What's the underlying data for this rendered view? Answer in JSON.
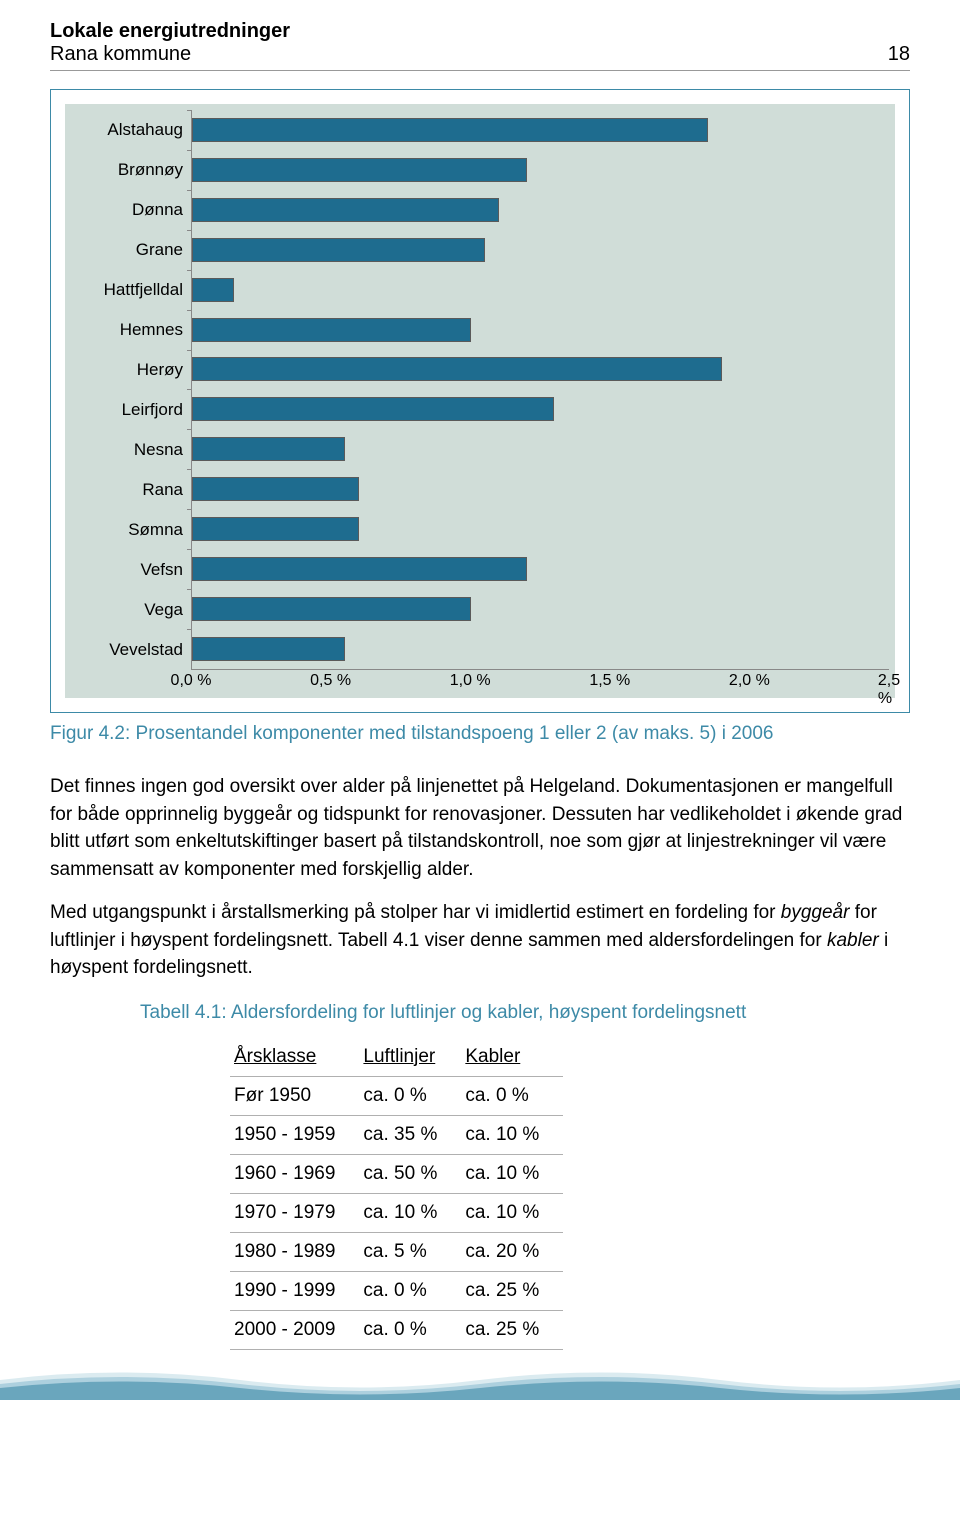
{
  "header": {
    "title": "Lokale energiutredninger",
    "subtitle": "Rana kommune",
    "page": "18"
  },
  "chart": {
    "type": "bar-horizontal",
    "background_color": "#d0ddd8",
    "bar_fill": "#1e6c8f",
    "bar_border": "#5a5a5a",
    "outer_border": "#3d8aa7",
    "label_fontsize": 17,
    "xlim": [
      0.0,
      2.5
    ],
    "xtick_step": 0.5,
    "xtick_labels": [
      "0,0 %",
      "0,5 %",
      "1,0 %",
      "1,5 %",
      "2,0 %",
      "2,5 %"
    ],
    "categories": [
      "Alstahaug",
      "Brønnøy",
      "Dønna",
      "Grane",
      "Hattfjelldal",
      "Hemnes",
      "Herøy",
      "Leirfjord",
      "Nesna",
      "Rana",
      "Sømna",
      "Vefsn",
      "Vega",
      "Vevelstad"
    ],
    "values": [
      1.85,
      1.2,
      1.1,
      1.05,
      0.15,
      1.0,
      1.9,
      1.3,
      0.55,
      0.6,
      0.6,
      1.2,
      1.0,
      0.55
    ]
  },
  "caption": "Figur 4.2: Prosentandel komponenter med tilstandspoeng 1 eller 2 (av maks. 5) i 2006",
  "paragraph1": "Det finnes ingen god oversikt over alder på linjenettet på Helgeland. Dokumentasjonen er mangelfull for både opprinnelig byggeår og tidspunkt for renovasjoner. Dessuten har vedlikeholdet i økende grad blitt utført som enkeltutskiftinger basert på tilstandskontroll, noe som gjør at linjestrekninger vil være sammensatt av komponenter med forskjellig alder.",
  "p2_a": "Med utgangspunkt i årstallsmerking på stolper har vi imidlertid estimert en fordeling for ",
  "p2_it1": "byggeår",
  "p2_b": " for luftlinjer i høyspent fordelingsnett. Tabell 4.1 viser denne sammen med aldersfordelingen for ",
  "p2_it2": "kabler",
  "p2_c": " i høyspent fordelingsnett.",
  "table": {
    "caption": "Tabell 4.1:  Aldersfordeling for luftlinjer og kabler, høyspent fordelingsnett",
    "columns": [
      "Årsklasse",
      "Luftlinjer",
      "Kabler"
    ],
    "rows": [
      [
        "Før 1950",
        "ca. 0 %",
        "ca. 0 %"
      ],
      [
        "1950 - 1959",
        "ca. 35 %",
        "ca. 10 %"
      ],
      [
        "1960 - 1969",
        "ca. 50 %",
        "ca. 10 %"
      ],
      [
        "1970 - 1979",
        "ca. 10 %",
        "ca. 10 %"
      ],
      [
        "1980 - 1989",
        "ca. 5 %",
        "ca. 20 %"
      ],
      [
        "1990 - 1999",
        "ca. 0 %",
        "ca. 25 %"
      ],
      [
        "2000 - 2009",
        "ca. 0 %",
        "ca. 25 %"
      ]
    ]
  },
  "wave_colors": [
    "#b7d7e2",
    "#7fb6cb",
    "#3d8aa7"
  ]
}
